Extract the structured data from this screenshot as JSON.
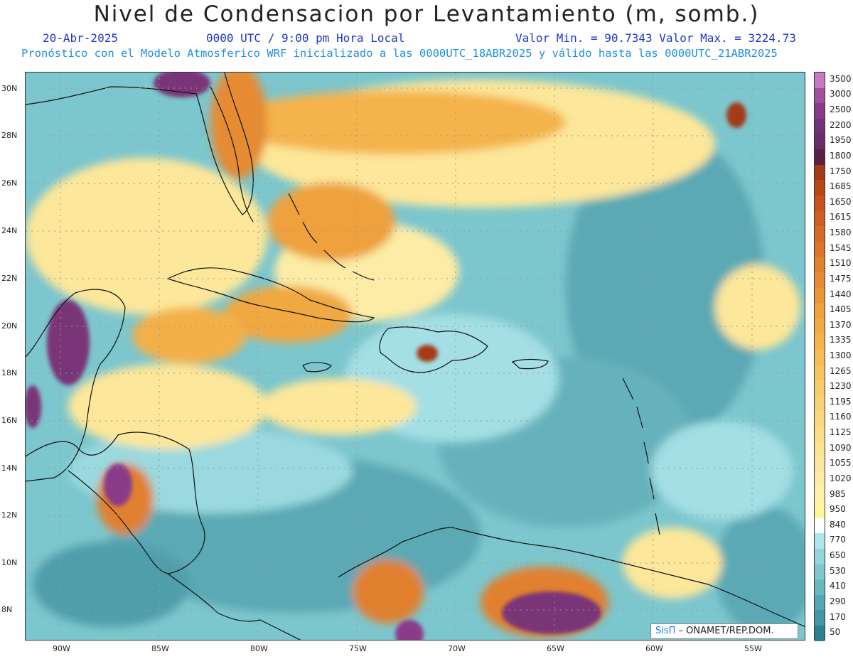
{
  "title": "Nivel de Condensacion por Levantamiento (m, somb.)",
  "date": "20-Abr-2025",
  "time": "0000 UTC / 9:00 pm Hora Local",
  "minmax": "Valor Min. = 90.7343  Valor Max. = 3224.73",
  "forecast": "Pronóstico con el Modelo Atmosferico WRF inicializado a las 0000UTC_18ABR2025 y válido hasta las  0000UTC_21ABR2025",
  "lat_labels": [
    "30N",
    "28N",
    "26N",
    "24N",
    "22N",
    "20N",
    "18N",
    "16N",
    "14N",
    "12N",
    "10N",
    "8N"
  ],
  "lon_labels": [
    "90W",
    "85W",
    "80W",
    "75W",
    "70W",
    "65W",
    "60W",
    "55W"
  ],
  "legend": {
    "labels": [
      "3500",
      "3000",
      "2500",
      "2200",
      "1950",
      "1800",
      "1750",
      "1685",
      "1650",
      "1615",
      "1580",
      "1545",
      "1510",
      "1475",
      "1440",
      "1405",
      "1370",
      "1335",
      "1300",
      "1265",
      "1230",
      "1195",
      "1160",
      "1125",
      "1090",
      "1055",
      "1020",
      "985",
      "950",
      "840",
      "770",
      "650",
      "530",
      "410",
      "290",
      "170",
      "50"
    ],
    "colors": [
      "#c678c2",
      "#a54f9c",
      "#8a3a88",
      "#75307a",
      "#6a2b6a",
      "#5d1f45",
      "#a33a18",
      "#b84718",
      "#c55320",
      "#cf5e22",
      "#d56a26",
      "#dc752a",
      "#e1802e",
      "#e68b32",
      "#ea9636",
      "#eea13c",
      "#f1aa44",
      "#f4b34c",
      "#f6bc56",
      "#f8c460",
      "#f9cb6a",
      "#fad274",
      "#fbd87e",
      "#fcdd88",
      "#fde292",
      "#fde79c",
      "#fdeca6",
      "#fef1b0",
      "#fff59a",
      "#ffffff",
      "#aee6ec",
      "#94d5dc",
      "#7fc6cf",
      "#6ab7c2",
      "#56a7b4",
      "#4497a6",
      "#2f7f92"
    ]
  },
  "credit": {
    "brand": "SisΠ",
    "rest": " –  ONAMET/REP.DOM."
  }
}
